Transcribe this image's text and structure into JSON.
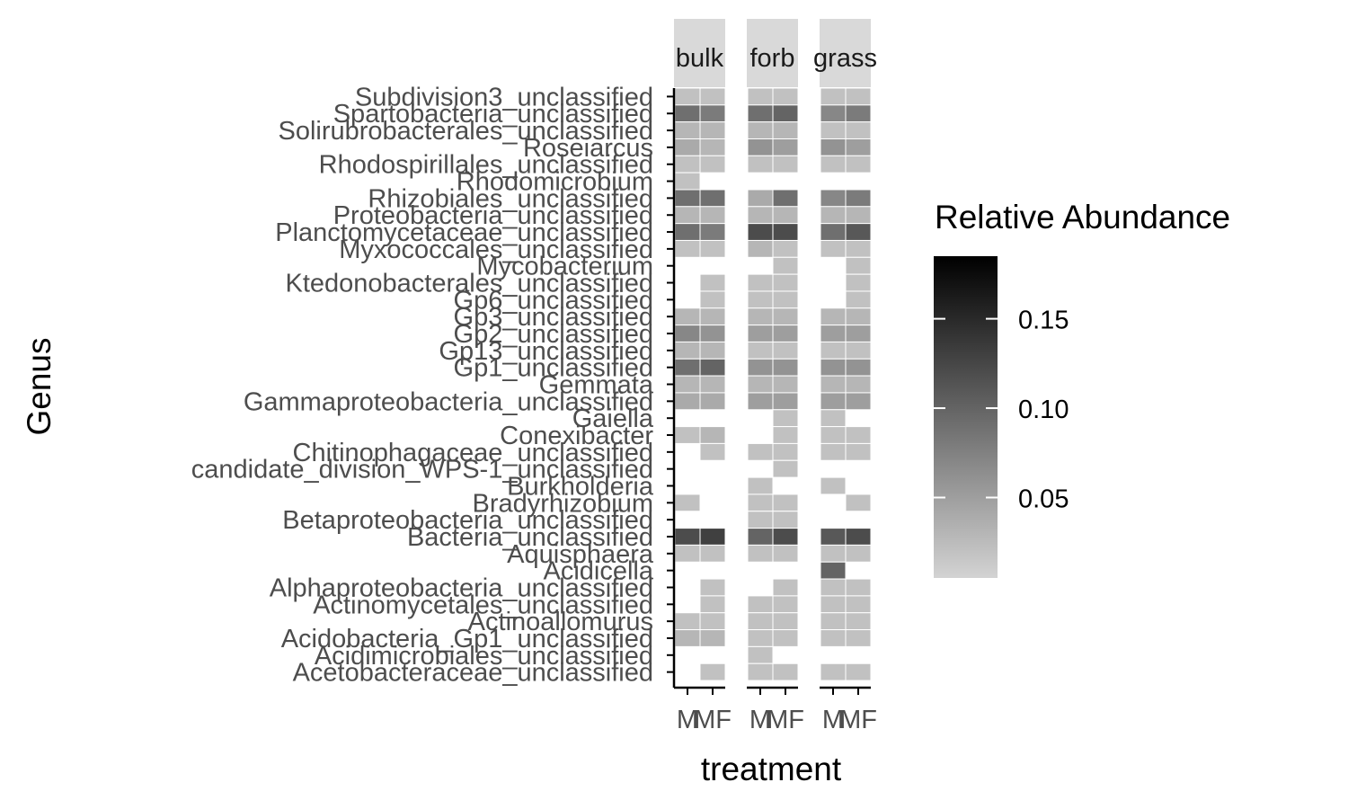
{
  "chart_data": {
    "type": "heatmap",
    "title": "",
    "xlabel": "treatment",
    "ylabel": "Genus",
    "facets": [
      "bulk",
      "forb",
      "grass"
    ],
    "x_categories": [
      "M",
      "MF"
    ],
    "y_categories": [
      "Subdivision3_unclassified",
      "Spartobacteria_unclassified",
      "Solirubrobacterales_unclassified",
      "Roseiarcus",
      "Rhodospirillales_unclassified",
      "Rhodomicrobium",
      "Rhizobiales_unclassified",
      "Proteobacteria_unclassified",
      "Planctomycetaceae_unclassified",
      "Myxococcales_unclassified",
      "Mycobacterium",
      "Ktedonobacterales_unclassified",
      "Gp6_unclassified",
      "Gp3_unclassified",
      "Gp2_unclassified",
      "Gp13_unclassified",
      "Gp1_unclassified",
      "Gemmata",
      "Gammaproteobacteria_unclassified",
      "Gaiella",
      "Conexibacter",
      "Chitinophagaceae_unclassified",
      "candidate_division_WPS-1_unclassified",
      "Burkholderia",
      "Bradyrhizobium",
      "Betaproteobacteria_unclassified",
      "Bacteria_unclassified",
      "Aquisphaera",
      "Acidicella",
      "Alphaproteobacteria_unclassified",
      "Actinomycetales_unclassified",
      "Actinoallomurus",
      "Acidobacteria_Gp1_unclassified",
      "Acidimicrobiales_unclassified",
      "Acetobacteraceae_unclassified"
    ],
    "values": {
      "bulk": [
        [
          0.02,
          0.02
        ],
        [
          0.09,
          0.08
        ],
        [
          0.03,
          0.03
        ],
        [
          0.04,
          0.03
        ],
        [
          0.02,
          0.02
        ],
        [
          0.02,
          null
        ],
        [
          0.09,
          0.09
        ],
        [
          0.03,
          0.03
        ],
        [
          0.09,
          0.08
        ],
        [
          0.02,
          0.02
        ],
        [
          null,
          null
        ],
        [
          null,
          0.02
        ],
        [
          null,
          0.02
        ],
        [
          0.03,
          0.03
        ],
        [
          0.07,
          0.06
        ],
        [
          0.03,
          0.03
        ],
        [
          0.09,
          0.1
        ],
        [
          0.03,
          0.03
        ],
        [
          0.04,
          0.04
        ],
        [
          null,
          null
        ],
        [
          0.02,
          0.03
        ],
        [
          null,
          0.02
        ],
        [
          null,
          null
        ],
        [
          null,
          null
        ],
        [
          0.02,
          null
        ],
        [
          null,
          null
        ],
        [
          0.12,
          0.13
        ],
        [
          0.02,
          0.02
        ],
        [
          null,
          null
        ],
        [
          null,
          0.02
        ],
        [
          null,
          0.02
        ],
        [
          0.02,
          0.02
        ],
        [
          0.03,
          0.03
        ],
        [
          null,
          null
        ],
        [
          null,
          0.02
        ]
      ],
      "forb": [
        [
          0.02,
          0.02
        ],
        [
          0.09,
          0.1
        ],
        [
          0.03,
          0.03
        ],
        [
          0.06,
          0.05
        ],
        [
          0.02,
          0.02
        ],
        [
          null,
          null
        ],
        [
          0.04,
          0.09
        ],
        [
          0.03,
          0.03
        ],
        [
          0.12,
          0.12
        ],
        [
          0.03,
          0.02
        ],
        [
          null,
          0.02
        ],
        [
          0.02,
          0.02
        ],
        [
          0.02,
          0.02
        ],
        [
          0.03,
          0.03
        ],
        [
          0.05,
          0.05
        ],
        [
          0.02,
          0.02
        ],
        [
          0.06,
          0.06
        ],
        [
          0.03,
          0.03
        ],
        [
          0.05,
          0.05
        ],
        [
          null,
          0.02
        ],
        [
          null,
          0.02
        ],
        [
          0.02,
          0.02
        ],
        [
          null,
          0.02
        ],
        [
          0.02,
          null
        ],
        [
          0.02,
          0.02
        ],
        [
          0.02,
          0.02
        ],
        [
          0.1,
          0.12
        ],
        [
          0.02,
          0.02
        ],
        [
          null,
          null
        ],
        [
          null,
          0.02
        ],
        [
          0.02,
          0.02
        ],
        [
          0.02,
          0.02
        ],
        [
          0.02,
          0.02
        ],
        [
          0.02,
          null
        ],
        [
          0.02,
          0.02
        ]
      ],
      "grass": [
        [
          0.02,
          0.02
        ],
        [
          0.07,
          0.08
        ],
        [
          0.02,
          0.02
        ],
        [
          0.06,
          0.05
        ],
        [
          0.02,
          0.02
        ],
        [
          null,
          null
        ],
        [
          0.07,
          0.08
        ],
        [
          0.03,
          0.03
        ],
        [
          0.09,
          0.11
        ],
        [
          0.02,
          0.02
        ],
        [
          null,
          0.02
        ],
        [
          null,
          0.02
        ],
        [
          null,
          0.02
        ],
        [
          0.03,
          0.03
        ],
        [
          0.05,
          0.05
        ],
        [
          0.02,
          0.02
        ],
        [
          0.06,
          0.06
        ],
        [
          0.03,
          0.03
        ],
        [
          0.05,
          0.05
        ],
        [
          0.02,
          null
        ],
        [
          0.02,
          0.02
        ],
        [
          0.02,
          0.02
        ],
        [
          null,
          null
        ],
        [
          0.02,
          null
        ],
        [
          null,
          0.02
        ],
        [
          null,
          null
        ],
        [
          0.11,
          0.12
        ],
        [
          0.02,
          0.02
        ],
        [
          0.1,
          null
        ],
        [
          0.02,
          0.02
        ],
        [
          0.02,
          0.02
        ],
        [
          0.02,
          0.02
        ],
        [
          0.02,
          0.02
        ],
        [
          null,
          null
        ],
        [
          0.02,
          0.02
        ]
      ]
    },
    "legend": {
      "title": "Relative Abundance",
      "ticks": [
        0.05,
        0.1,
        0.15
      ],
      "tick_labels": [
        "0.05",
        "0.10",
        "0.15"
      ],
      "range": [
        0.005,
        0.185
      ],
      "low_color": "#d3d3d3",
      "high_color": "#000000",
      "placement": "right"
    },
    "colors": {
      "strip_background": "#d9d9d9",
      "tile_border": "#ffffff",
      "axis_line": "#000000",
      "tick_label": "#4d4d4d"
    },
    "grid": false
  }
}
